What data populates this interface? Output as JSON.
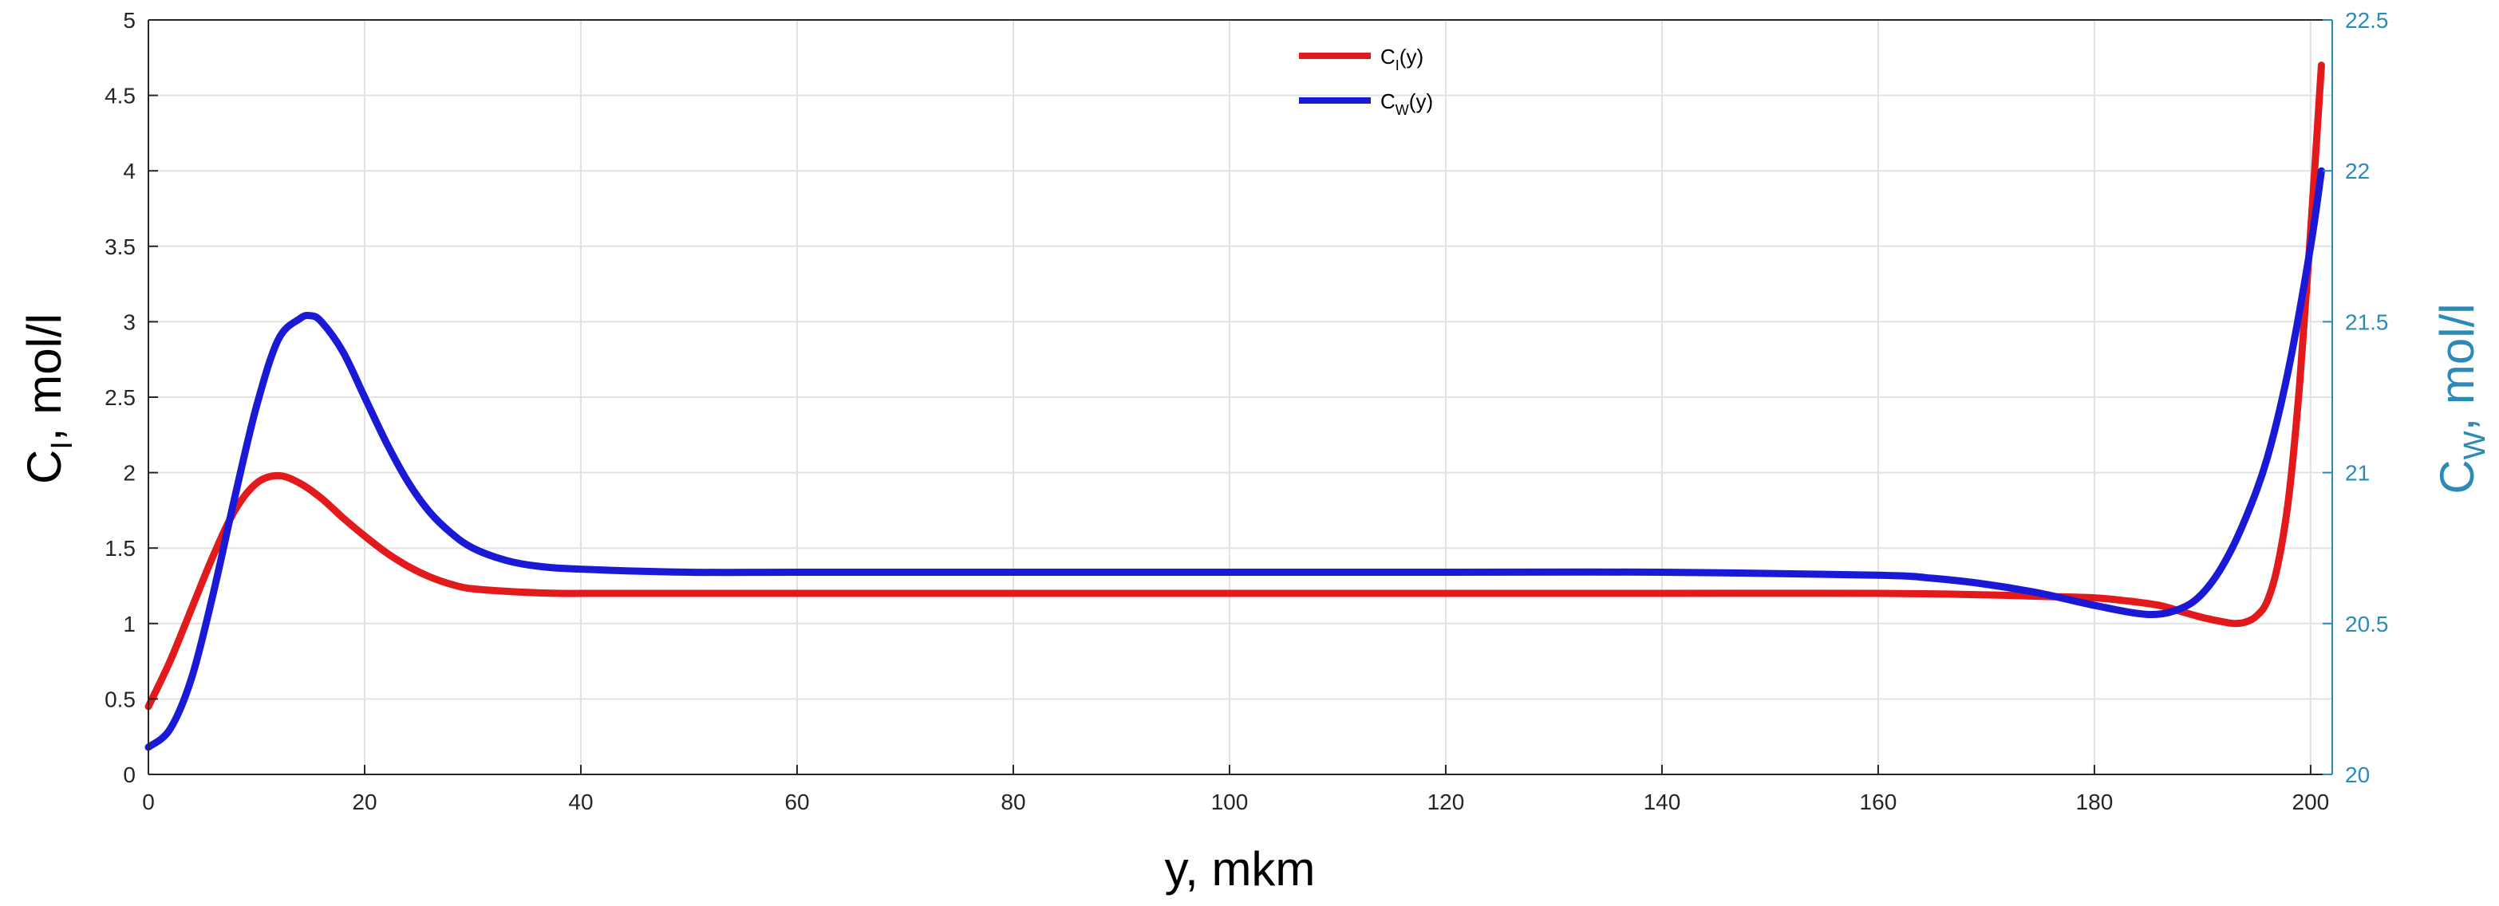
{
  "chart_data": {
    "type": "line",
    "x_label": {
      "main": "y, mkm"
    },
    "y_left_label": {
      "main": "C",
      "sub": "I",
      "rest": ", mol/l"
    },
    "y_right_label": {
      "main": "C",
      "sub": "W",
      "rest": ", mol/l"
    },
    "xlim": [
      0,
      202
    ],
    "ylim_left": [
      0,
      5
    ],
    "ylim_right": [
      20,
      22.5
    ],
    "x_ticks": [
      0,
      20,
      40,
      60,
      80,
      100,
      120,
      140,
      160,
      180,
      200
    ],
    "y_left_ticks": [
      "0",
      "0.5",
      "1",
      "1.5",
      "2",
      "2.5",
      "3",
      "3.5",
      "4",
      "4.5",
      "5"
    ],
    "y_right_ticks": [
      "20",
      "20.5",
      "21",
      "21.5",
      "22",
      "22.5"
    ],
    "grid": true,
    "legend_position": "top-center",
    "series": [
      {
        "name": "C_I(y)",
        "legend_main": "C",
        "legend_sub": "I",
        "legend_rest": "(y)",
        "axis": "left",
        "color": "#e31a1c",
        "x": [
          0,
          2,
          4,
          6,
          8,
          10,
          12,
          14,
          16,
          18,
          20,
          22,
          24,
          26,
          28,
          30,
          34,
          38,
          42,
          50,
          60,
          80,
          100,
          120,
          140,
          160,
          170,
          175,
          180,
          183,
          186,
          188,
          190,
          192,
          193,
          194,
          195,
          196,
          197,
          198,
          199,
          200,
          201
        ],
        "y": [
          0.45,
          0.75,
          1.1,
          1.45,
          1.75,
          1.93,
          1.98,
          1.93,
          1.83,
          1.7,
          1.58,
          1.47,
          1.38,
          1.31,
          1.26,
          1.23,
          1.21,
          1.2,
          1.2,
          1.2,
          1.2,
          1.2,
          1.2,
          1.2,
          1.2,
          1.2,
          1.19,
          1.18,
          1.17,
          1.15,
          1.12,
          1.08,
          1.04,
          1.01,
          1.0,
          1.01,
          1.05,
          1.15,
          1.4,
          1.85,
          2.6,
          3.6,
          4.7
        ]
      },
      {
        "name": "C_W(y)",
        "legend_main": "C",
        "legend_sub": "W",
        "legend_rest": "(y)",
        "axis": "right",
        "color": "#1a1ad6",
        "x": [
          0,
          2,
          4,
          6,
          8,
          10,
          12,
          14,
          15,
          16,
          18,
          20,
          22,
          24,
          26,
          28,
          30,
          33,
          36,
          40,
          50,
          60,
          80,
          100,
          120,
          140,
          160,
          165,
          170,
          175,
          180,
          185,
          188,
          190,
          192,
          194,
          196,
          198,
          200,
          201
        ],
        "y": [
          20.09,
          20.15,
          20.32,
          20.6,
          20.92,
          21.22,
          21.44,
          21.51,
          21.52,
          21.5,
          21.4,
          21.25,
          21.1,
          20.97,
          20.87,
          20.8,
          20.75,
          20.71,
          20.69,
          20.68,
          20.67,
          20.67,
          20.67,
          20.67,
          20.67,
          20.67,
          20.66,
          20.65,
          20.63,
          20.6,
          20.56,
          20.53,
          20.55,
          20.6,
          20.7,
          20.85,
          21.05,
          21.35,
          21.75,
          22.0
        ]
      }
    ]
  }
}
